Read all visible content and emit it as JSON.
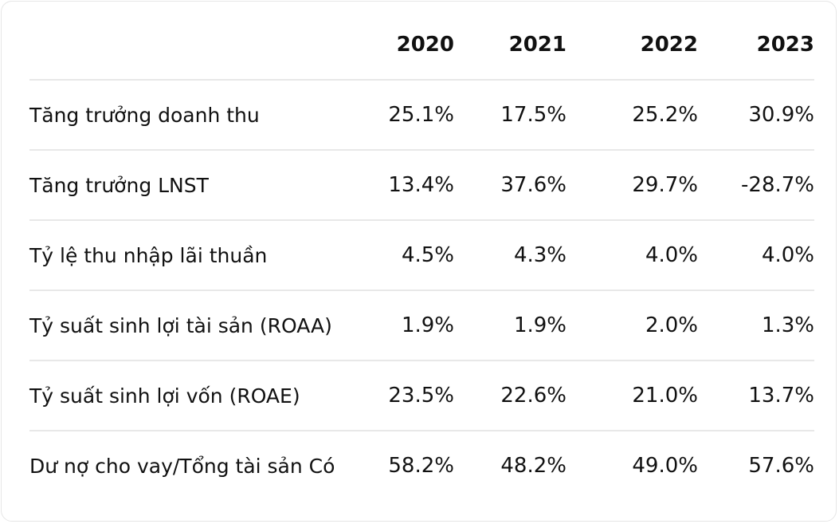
{
  "table": {
    "header": [
      "2020",
      "2021",
      "2022",
      "2023"
    ],
    "rows": [
      [
        "Tăng trưởng doanh thu",
        "25.1%",
        "17.5%",
        "25.2%",
        "30.9%"
      ],
      [
        "Tăng trưởng LNST",
        "13.4%",
        "37.6%",
        "29.7%",
        "-28.7%"
      ],
      [
        "Tỷ lệ thu nhập lãi thuần",
        "4.5%",
        "4.3%",
        "4.0%",
        "4.0%"
      ],
      [
        "Tỷ suất sinh lợi tài sản (ROAA)",
        "1.9%",
        "1.9%",
        "2.0%",
        "1.3%"
      ],
      [
        "Tỷ suất sinh lợi vốn (ROAE)",
        "23.5%",
        "22.6%",
        "21.0%",
        "13.7%"
      ],
      [
        "Dư nợ cho vay/Tổng tài sản Có",
        "58.2%",
        "48.2%",
        "49.0%",
        "57.6%"
      ]
    ]
  }
}
